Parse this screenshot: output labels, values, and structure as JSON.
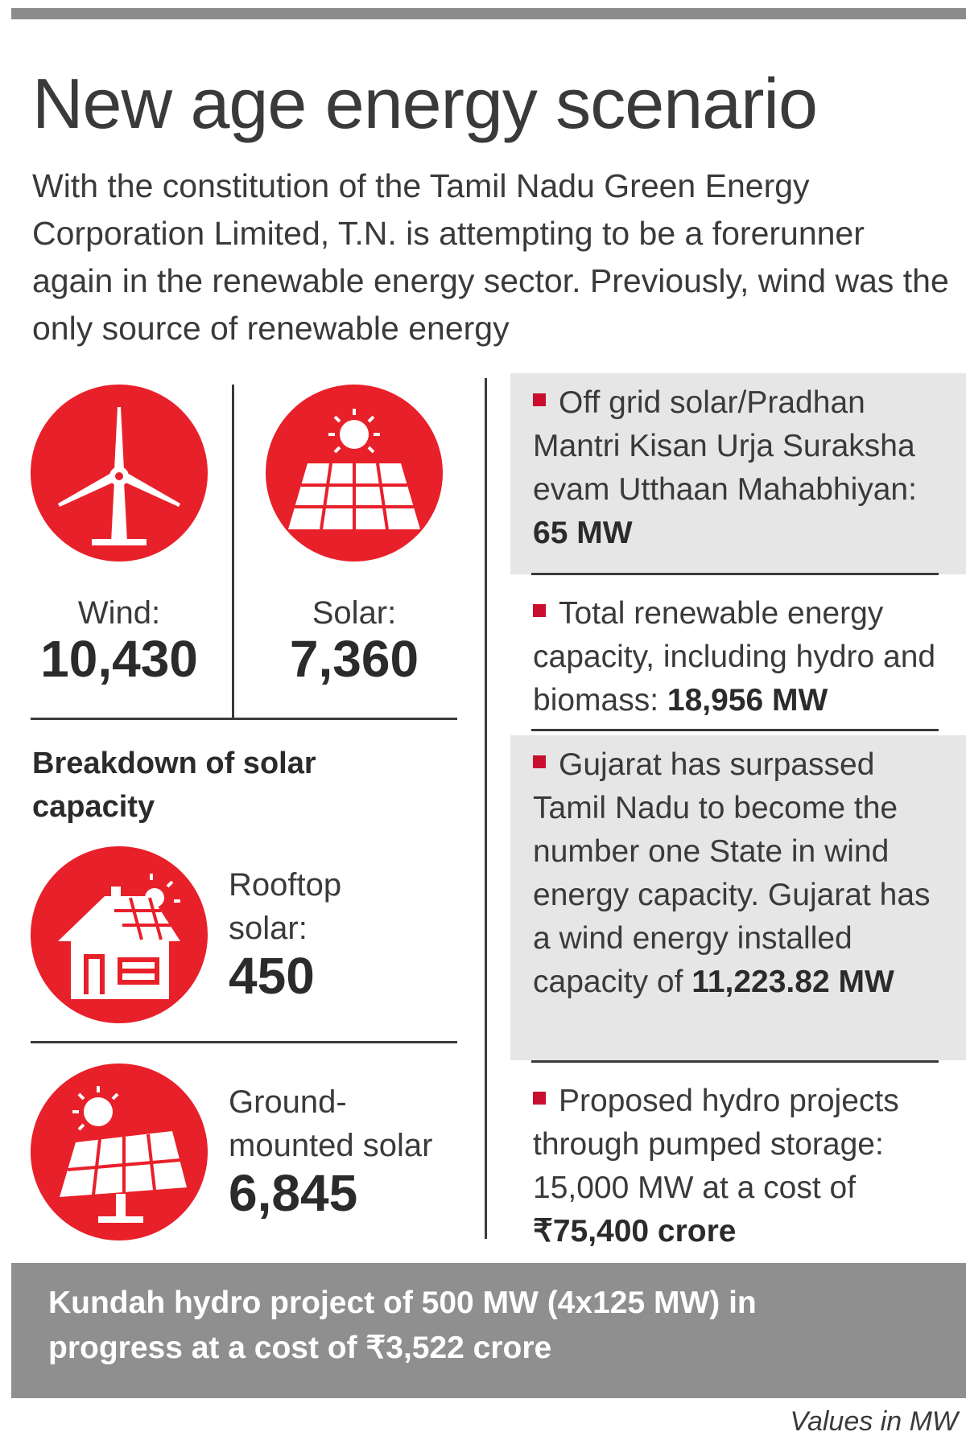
{
  "title": "New age energy scenario",
  "intro": "With the constitution of the Tamil Nadu Green Energy Corporation Limited, T.N. is attempting to be a forerunner again in the renewable energy sector. Previously, wind was the only source of renewable energy",
  "wind": {
    "label": "Wind:",
    "value": "10,430",
    "icon": "wind-turbine-icon"
  },
  "solar": {
    "label": "Solar:",
    "value": "7,360",
    "icon": "solar-panel-icon"
  },
  "breakdown": {
    "title": "Breakdown of solar capacity",
    "rooftop": {
      "label_line1": "Rooftop",
      "label_line2": "solar:",
      "value": "450",
      "icon": "house-solar-icon"
    },
    "ground": {
      "label_line1": "Ground-",
      "label_line2": "mounted solar",
      "value": "6,845",
      "icon": "ground-solar-panel-icon"
    }
  },
  "notes": [
    {
      "text": "Off grid solar/Pradhan Mantri Kisan Urja Suraksha evam Utthaan Mahabhiyan: ",
      "bold": "65 MW"
    },
    {
      "text": "Total renewable energy capacity, including hydro and biomass: ",
      "bold": "18,956 MW"
    },
    {
      "text": "Gujarat has surpassed Tamil Nadu to become the number one State in wind energy capacity. Gujarat has a wind energy installed capacity of ",
      "bold": "11,223.82 MW"
    },
    {
      "text": "Proposed hydro projects through pumped storage: 15,000 MW at a cost of ",
      "bold": "₹75,400 crore"
    }
  ],
  "footer": {
    "line1": "Kundah hydro project of 500 MW (4x125 MW) in",
    "line2": "progress at a cost of ₹3,522 crore"
  },
  "units": "Values in MW",
  "colors": {
    "accent": "#e8202a",
    "bullet": "#c8102e",
    "shade": "#e6e6e6",
    "footer": "#8f8f8f"
  }
}
